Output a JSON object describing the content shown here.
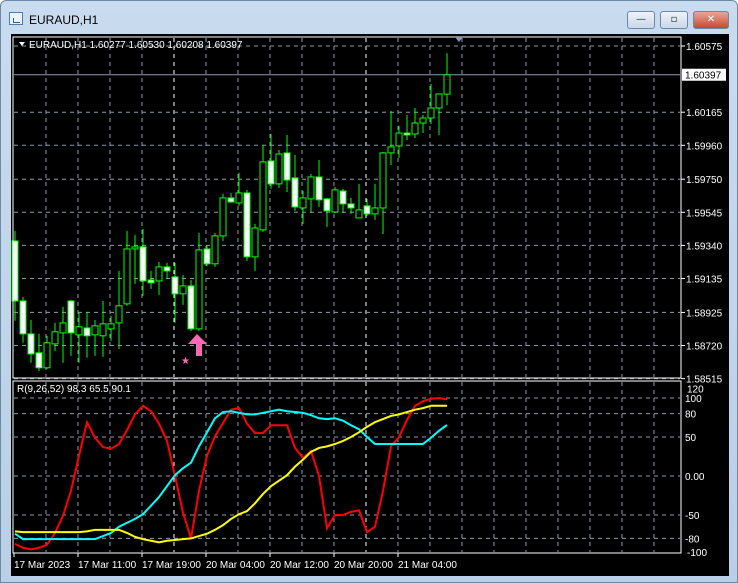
{
  "window": {
    "title": "EURAUD,H1",
    "minimize": "—",
    "maximize": "▫",
    "close": "✕"
  },
  "chart": {
    "symbol_info": "EURAUD,H1  1.60277 1.60530 1.60208 1.60397",
    "colors": {
      "background": "#000000",
      "grid": "#8b9aae",
      "candle_outline": "#00ff00",
      "bear_body": "#ffffff",
      "bull_body": "#000000",
      "bid_line": "#8b9aae",
      "axis_text": "#ffffff",
      "arrow": "#ff69b4"
    },
    "price_ticks": [
      "1.60575",
      "1.60165",
      "1.59960",
      "1.59750",
      "1.59545",
      "1.59340",
      "1.59135",
      "1.58925",
      "1.58720",
      "1.58515"
    ],
    "current_price": "1.60397",
    "time_labels": [
      "17 Mar 2023",
      "17 Mar 11:00",
      "17 Mar 19:00",
      "20 Mar 04:00",
      "20 Mar 12:00",
      "20 Mar 20:00",
      "21 Mar 04:00"
    ],
    "ohlc": [
      [
        1.59368,
        1.5943,
        1.58873,
        1.58996
      ],
      [
        1.58996,
        1.59021,
        1.58737,
        1.58792
      ],
      [
        1.58792,
        1.58879,
        1.58613,
        1.58668
      ],
      [
        1.58675,
        1.58792,
        1.58563,
        1.58582
      ],
      [
        1.58582,
        1.5878,
        1.58576,
        1.58737
      ],
      [
        1.5873,
        1.5886,
        1.58687,
        1.58805
      ],
      [
        1.58798,
        1.58959,
        1.58613,
        1.5886
      ],
      [
        1.58996,
        1.59003,
        1.58656,
        1.58798
      ],
      [
        1.58786,
        1.58922,
        1.58613,
        1.58836
      ],
      [
        1.58829,
        1.58928,
        1.58644,
        1.5878
      ],
      [
        1.58786,
        1.58879,
        1.58656,
        1.58842
      ],
      [
        1.5878,
        1.58996,
        1.5865,
        1.58854
      ],
      [
        1.58823,
        1.58904,
        1.58749,
        1.58854
      ],
      [
        1.5886,
        1.59182,
        1.58699,
        1.58966
      ],
      [
        1.58978,
        1.5943,
        1.58966,
        1.59318
      ],
      [
        1.59318,
        1.59405,
        1.59102,
        1.59331
      ],
      [
        1.59331,
        1.59442,
        1.59028,
        1.5912
      ],
      [
        1.59126,
        1.59182,
        1.59071,
        1.59108
      ],
      [
        1.5912,
        1.59238,
        1.59034,
        1.59207
      ],
      [
        1.59207,
        1.59232,
        1.59133,
        1.59182
      ],
      [
        1.59145,
        1.59232,
        1.5886,
        1.5904
      ],
      [
        1.5904,
        1.59157,
        1.58972,
        1.59089
      ],
      [
        1.59089,
        1.59126,
        1.58811,
        1.58823
      ],
      [
        1.58823,
        1.59417,
        1.58811,
        1.59312
      ],
      [
        1.59318,
        1.59337,
        1.59213,
        1.59226
      ],
      [
        1.59226,
        1.59417,
        1.59207,
        1.59399
      ],
      [
        1.59399,
        1.59659,
        1.59368,
        1.59634
      ],
      [
        1.59634,
        1.59665,
        1.59603,
        1.59609
      ],
      [
        1.59603,
        1.59789,
        1.59585,
        1.59665
      ],
      [
        1.59665,
        1.59684,
        1.59244,
        1.59269
      ],
      [
        1.59269,
        1.59473,
        1.59182,
        1.59448
      ],
      [
        1.59436,
        1.59962,
        1.59424,
        1.59857
      ],
      [
        1.59863,
        1.6003,
        1.5969,
        1.59721
      ],
      [
        1.59721,
        1.59931,
        1.59696,
        1.59906
      ],
      [
        1.59913,
        1.60024,
        1.59671,
        1.59745
      ],
      [
        1.59758,
        1.599,
        1.59554,
        1.59578
      ],
      [
        1.59572,
        1.59677,
        1.59473,
        1.59634
      ],
      [
        1.59628,
        1.59783,
        1.59541,
        1.59764
      ],
      [
        1.59764,
        1.59869,
        1.59578,
        1.59622
      ],
      [
        1.59628,
        1.59634,
        1.59455,
        1.59554
      ],
      [
        1.59547,
        1.59702,
        1.59541,
        1.59684
      ],
      [
        1.59677,
        1.5969,
        1.59541,
        1.59597
      ],
      [
        1.59597,
        1.59634,
        1.59535,
        1.59572
      ],
      [
        1.5951,
        1.59721,
        1.5951,
        1.5956
      ],
      [
        1.59585,
        1.59628,
        1.59523,
        1.59535
      ],
      [
        1.59535,
        1.59721,
        1.59498,
        1.59572
      ],
      [
        1.59572,
        1.59919,
        1.59411,
        1.59913
      ],
      [
        1.59913,
        1.60173,
        1.59838,
        1.5995
      ],
      [
        1.59956,
        1.6008,
        1.59882,
        1.60036
      ],
      [
        1.60036,
        1.60148,
        1.59993,
        1.60024
      ],
      [
        1.6003,
        1.60191,
        1.60005,
        1.60098
      ],
      [
        1.60098,
        1.60148,
        1.60036,
        1.60129
      ],
      [
        1.60129,
        1.6034,
        1.60092,
        1.60191
      ],
      [
        1.60191,
        1.60278,
        1.60024,
        1.60278
      ],
      [
        1.60277,
        1.6053,
        1.60208,
        1.60397
      ]
    ],
    "signal_arrow": {
      "type": "buy-arrow",
      "bar": 23
    }
  },
  "indicator": {
    "label": "R(9,26,52) 98.3 65.5 90.1",
    "ticks": [
      "120",
      "100",
      "80",
      "50",
      "0.00",
      "-50",
      "-80",
      "-100"
    ],
    "levels": [
      120,
      100,
      80,
      50,
      0,
      -50,
      -80,
      -100
    ],
    "series": [
      {
        "color": "#ff0000",
        "values": [
          -87,
          -92,
          -94,
          -92,
          -88,
          -73,
          -51,
          -19,
          26,
          69,
          49,
          37,
          35,
          41,
          59,
          79,
          90,
          83,
          67,
          45,
          0,
          -47,
          -80,
          -19,
          26,
          51,
          68,
          85,
          87,
          67,
          55,
          55,
          65,
          65,
          65,
          36,
          23,
          32,
          0,
          -67,
          -50,
          -50,
          -46,
          -44,
          -72,
          -65,
          -19,
          38,
          50,
          72,
          90,
          96,
          99,
          100,
          98.3
        ]
      },
      {
        "color": "#00ffff",
        "values": [
          -74,
          -81,
          -81,
          -81,
          -81,
          -81,
          -81,
          -81,
          -81,
          -81,
          -81,
          -77,
          -73,
          -65,
          -60,
          -55,
          -49,
          -38,
          -27,
          -13,
          1,
          10,
          17,
          38,
          56,
          74,
          82,
          83,
          81,
          79,
          79,
          81,
          83,
          85,
          83,
          82,
          81,
          78,
          74,
          73,
          74,
          71,
          65,
          60,
          50,
          41,
          41,
          41,
          41,
          41,
          41,
          41,
          49,
          58,
          65.5
        ]
      },
      {
        "color": "#ffff00",
        "values": [
          -71,
          -72,
          -72,
          -72,
          -72,
          -72,
          -72,
          -72,
          -72,
          -71,
          -69,
          -69,
          -69,
          -69,
          -73,
          -78,
          -81,
          -83,
          -85,
          -83,
          -82,
          -81,
          -80,
          -77,
          -74,
          -69,
          -63,
          -55,
          -49,
          -45,
          -35,
          -23,
          -13,
          -6,
          1,
          12,
          21,
          31,
          36,
          38,
          41,
          45,
          50,
          56,
          63,
          69,
          73,
          77,
          79,
          82,
          85,
          87,
          90,
          90,
          90.1
        ]
      }
    ]
  }
}
